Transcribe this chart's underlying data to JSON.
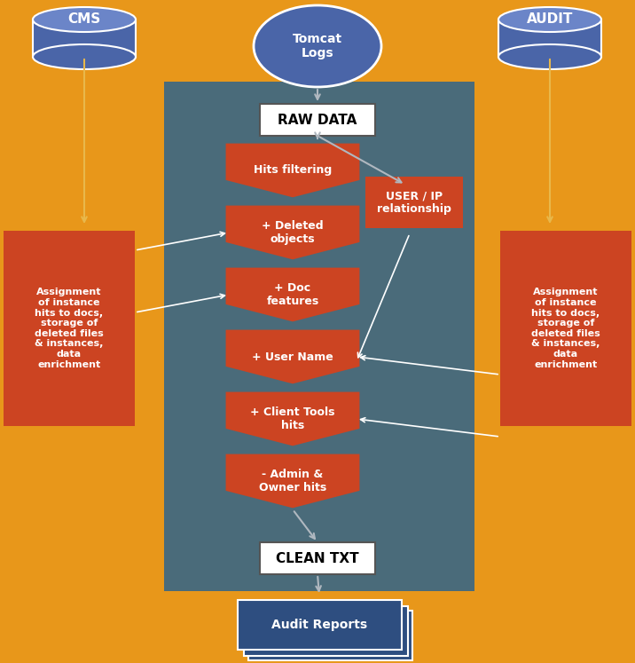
{
  "bg_color": "#E8971A",
  "panel_color": "#4A6B7A",
  "orange_box_color": "#CC4422",
  "blue_db_color": "#4A65A8",
  "blue_db_top_color": "#6B85C8",
  "white_box_color": "#FFFFFF",
  "blue_report_color": "#2E4E80",
  "arrow_color_light": "#B0B8C0",
  "arrow_color_orange": "#E8B84B",
  "side_box_text": "Assignment\nof instance\nhits to docs,\nstorage of\ndeleted files\n& instances,\ndata\nenrichment",
  "chevron_labels": [
    "Hits filtering",
    "+ Deleted\nobjects",
    "+ Doc\nfeatures",
    "+ User Name",
    "+ Client Tools\nhits",
    "- Admin &\nOwner hits"
  ],
  "raw_data_label": "RAW DATA",
  "clean_txt_label": "CLEAN TXT",
  "user_ip_label": "USER / IP\nrelationship",
  "report_label": "Audit Reports",
  "fig_w": 7.16,
  "fig_h": 7.47,
  "dpi": 100
}
